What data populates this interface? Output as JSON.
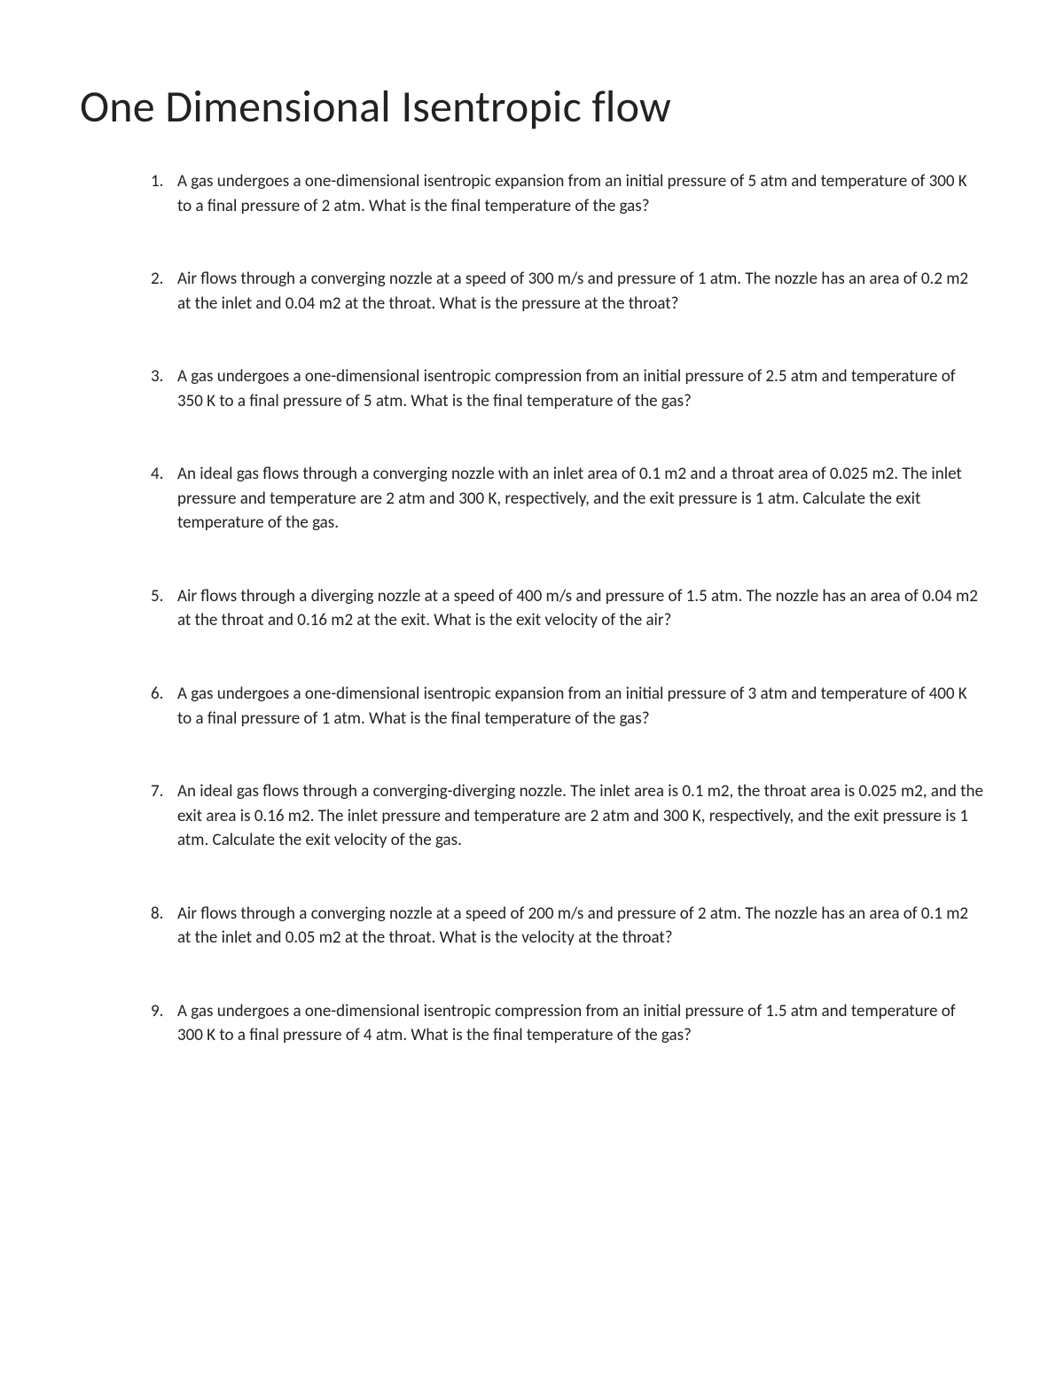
{
  "title": "One Dimensional Isentropic flow",
  "questions": [
    {
      "n": "1.",
      "t": "A gas undergoes a one-dimensional isentropic expansion from an initial pressure of 5 atm and temperature of 300 K to a final pressure of 2 atm. What is the final temperature of the gas?"
    },
    {
      "n": "2.",
      "t": "Air flows through a converging nozzle at a speed of 300 m/s and pressure of 1 atm. The nozzle has an area of 0.2 m2 at the inlet and 0.04 m2 at the throat. What is the pressure at the throat?"
    },
    {
      "n": "3.",
      "t": "A gas undergoes a one-dimensional isentropic compression from an initial pressure of 2.5 atm and temperature of 350 K to a final pressure of 5 atm. What is the final temperature of the gas?"
    },
    {
      "n": "4.",
      "t": "An ideal gas flows through a converging nozzle with an inlet area of 0.1 m2 and a throat area of 0.025 m2. The inlet pressure and temperature are 2 atm and 300 K, respectively, and the exit pressure is 1 atm. Calculate the exit temperature of the gas."
    },
    {
      "n": "5.",
      "t": "Air flows through a diverging nozzle at a speed of 400 m/s and pressure of 1.5 atm. The nozzle has an area of 0.04 m2 at the throat and 0.16 m2 at the exit. What is the exit velocity of the air?"
    },
    {
      "n": "6.",
      "t": "A gas undergoes a one-dimensional isentropic expansion from an initial pressure of 3 atm and temperature of 400 K to a final pressure of 1 atm. What is the final temperature of the gas?"
    },
    {
      "n": "7.",
      "t": "An ideal gas flows through a converging-diverging nozzle. The inlet area is 0.1 m2, the throat area is 0.025 m2, and the exit area is 0.16 m2. The inlet pressure and temperature are 2 atm and 300 K, respectively, and the exit pressure is 1 atm. Calculate the exit velocity of the gas."
    },
    {
      "n": "8.",
      "t": "Air flows through a converging nozzle at a speed of 200 m/s and pressure of 2 atm. The nozzle has an area of 0.1 m2 at the inlet and 0.05 m2 at the throat. What is the velocity at the throat?"
    },
    {
      "n": "9.",
      "t": "A gas undergoes a one-dimensional isentropic compression from an initial pressure of 1.5 atm and temperature of 300 K to a final pressure of 4 atm. What is the final temperature of the gas?"
    }
  ],
  "colors": {
    "background": "#ffffff",
    "text": "#222222"
  },
  "typography": {
    "title_fontsize": 50,
    "body_fontsize": 19,
    "font_family": "Calibri"
  }
}
